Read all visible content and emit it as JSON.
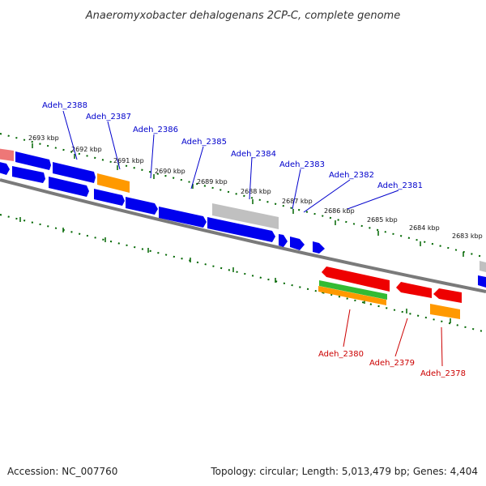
{
  "title": "Anaeromyxobacter dehalogenans 2CP-C, complete genome",
  "footer": {
    "accession": "Accession: NC_007760",
    "summary": "Topology: circular; Length: 5,013,479 bp; Genes: 4,404"
  },
  "colors": {
    "forward_label": "#0000cc",
    "reverse_label": "#cc0000",
    "blue_gene": "#0000ee",
    "red_gene": "#ee0000",
    "orange_gene": "#ff9900",
    "green_gene": "#33bb33",
    "pink_gene": "#ee7777",
    "grey_gene": "#bbbbbb",
    "backbone": "#777777",
    "tick": "#006600"
  },
  "kbp_labels": [
    "2693 kbp",
    "2692 kbp",
    "2691 kbp",
    "2690 kbp",
    "2689 kbp",
    "2688 kbp",
    "2687 kbp",
    "2686 kbp",
    "2685 kbp",
    "2684 kbp",
    "2683 kbp"
  ],
  "forward_genes": [
    "Adeh_2388",
    "Adeh_2387",
    "Adeh_2386",
    "Adeh_2385",
    "Adeh_2384",
    "Adeh_2383",
    "Adeh_2382",
    "Adeh_2381"
  ],
  "reverse_genes": [
    "Adeh_2380",
    "Adeh_2379",
    "Adeh_2378"
  ]
}
